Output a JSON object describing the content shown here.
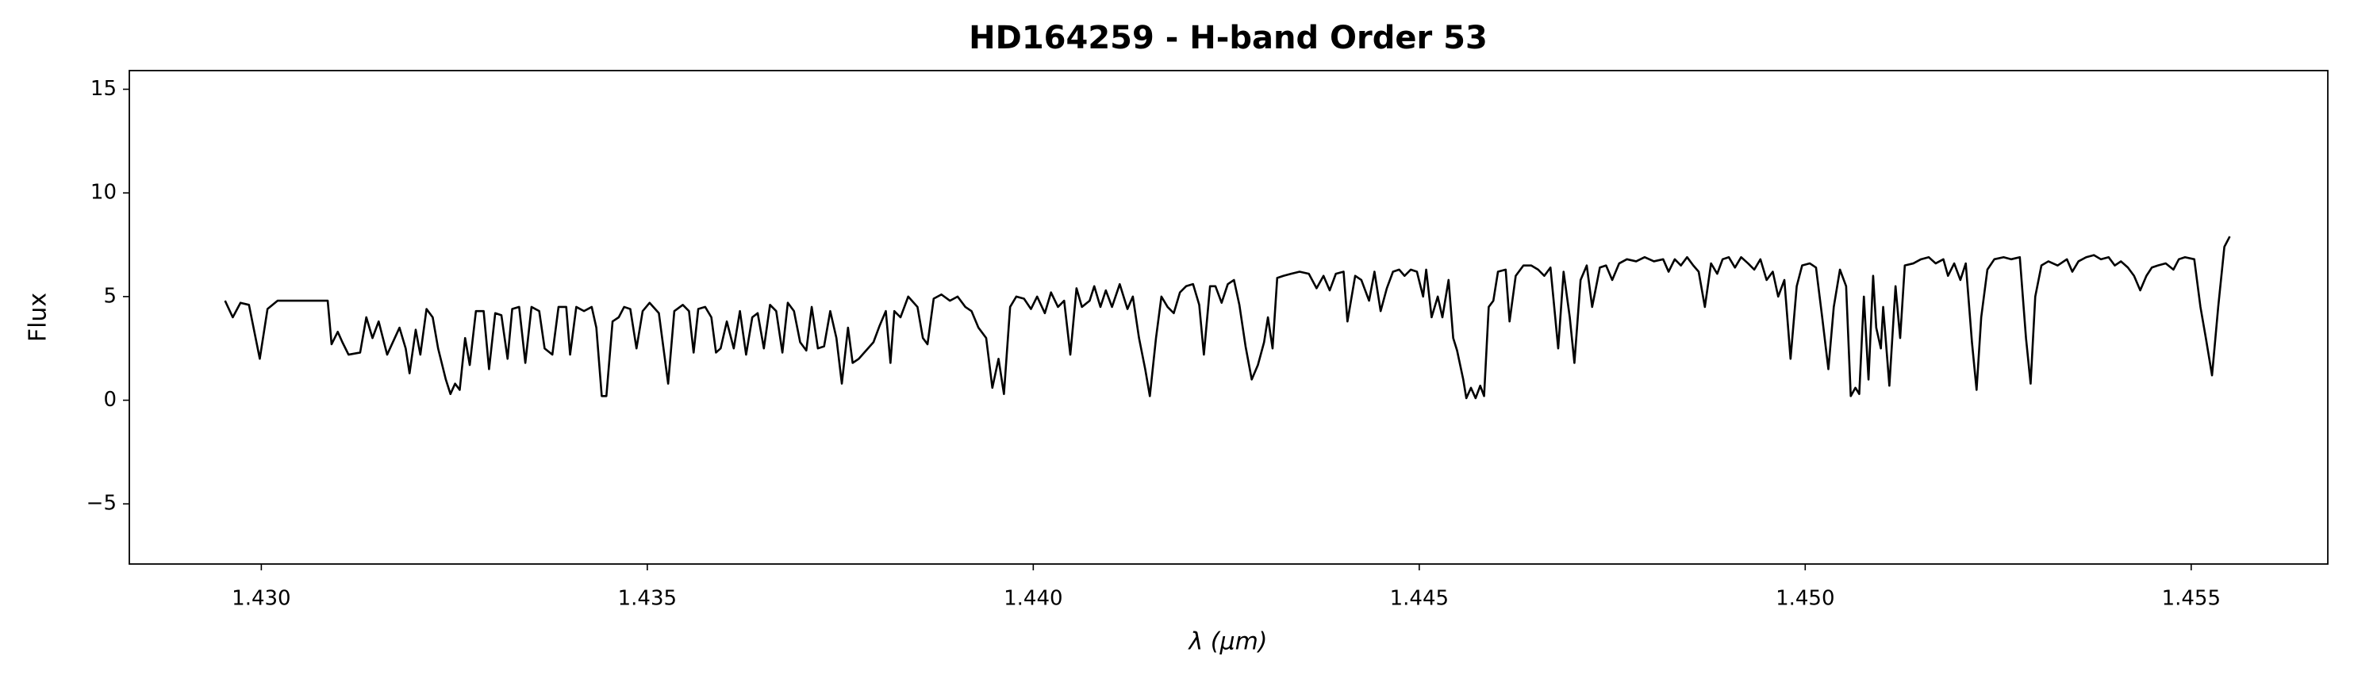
{
  "chart_data": {
    "type": "line",
    "title": "HD164259 - H-band Order 53",
    "x_label": "λ (μm)",
    "y_label": "Flux",
    "color": "#000000",
    "xlim": [
      1.42829,
      1.45677
    ],
    "ylim": [
      -7.9,
      15.9
    ],
    "xticks": [
      {
        "value": 1.43,
        "label": "1.430"
      },
      {
        "value": 1.435,
        "label": "1.435"
      },
      {
        "value": 1.44,
        "label": "1.440"
      },
      {
        "value": 1.445,
        "label": "1.445"
      },
      {
        "value": 1.45,
        "label": "1.450"
      },
      {
        "value": 1.455,
        "label": "1.455"
      }
    ],
    "yticks": [
      {
        "value": -5,
        "label": "−5"
      },
      0,
      5,
      10,
      15
    ],
    "grid": false,
    "x": [
      1.42953,
      1.42963,
      1.42973,
      1.42984,
      1.42998,
      1.43008,
      1.43021,
      1.43086,
      1.43091,
      1.43099,
      1.43105,
      1.43113,
      1.43128,
      1.43136,
      1.43144,
      1.43152,
      1.43163,
      1.43179,
      1.43187,
      1.43192,
      1.432,
      1.43206,
      1.43214,
      1.43222,
      1.43229,
      1.43239,
      1.43245,
      1.43251,
      1.43257,
      1.43264,
      1.4327,
      1.43278,
      1.43288,
      1.43295,
      1.43303,
      1.43311,
      1.43319,
      1.43325,
      1.43334,
      1.43342,
      1.4335,
      1.4336,
      1.43367,
      1.43377,
      1.43385,
      1.43395,
      1.434,
      1.43408,
      1.43418,
      1.43428,
      1.43434,
      1.43441,
      1.43447,
      1.43455,
      1.43463,
      1.4347,
      1.43478,
      1.43486,
      1.43494,
      1.43503,
      1.43515,
      1.43527,
      1.43535,
      1.43546,
      1.43554,
      1.4356,
      1.43566,
      1.43575,
      1.43583,
      1.43589,
      1.43595,
      1.43603,
      1.43612,
      1.4362,
      1.43628,
      1.43636,
      1.43643,
      1.43651,
      1.43659,
      1.43667,
      1.43675,
      1.43682,
      1.4369,
      1.43698,
      1.43706,
      1.43713,
      1.43721,
      1.43729,
      1.43737,
      1.43745,
      1.43752,
      1.4376,
      1.43766,
      1.43774,
      1.43793,
      1.43801,
      1.43809,
      1.43815,
      1.4382,
      1.43828,
      1.43838,
      1.4385,
      1.43857,
      1.43863,
      1.43871,
      1.43881,
      1.43892,
      1.43902,
      1.43912,
      1.4392,
      1.43929,
      1.43939,
      1.43947,
      1.43955,
      1.43962,
      1.4397,
      1.43978,
      1.43988,
      1.43997,
      1.44005,
      1.44015,
      1.44023,
      1.44032,
      1.4404,
      1.44048,
      1.44056,
      1.44063,
      1.44073,
      1.44079,
      1.44087,
      1.44094,
      1.44102,
      1.44112,
      1.44122,
      1.44129,
      1.44137,
      1.44145,
      1.44151,
      1.44159,
      1.44166,
      1.44174,
      1.44182,
      1.4419,
      1.44198,
      1.44207,
      1.44215,
      1.44221,
      1.44229,
      1.44236,
      1.44244,
      1.44252,
      1.4426,
      1.44267,
      1.44275,
      1.44283,
      1.44291,
      1.44299,
      1.44304,
      1.4431,
      1.44316,
      1.44324,
      1.44334,
      1.44345,
      1.44357,
      1.44367,
      1.44376,
      1.44384,
      1.44392,
      1.44402,
      1.44407,
      1.44417,
      1.44425,
      1.44435,
      1.44442,
      1.4445,
      1.44458,
      1.44466,
      1.44474,
      1.44481,
      1.44489,
      1.44497,
      1.44505,
      1.44509,
      1.44516,
      1.44524,
      1.4453,
      1.44538,
      1.44544,
      1.44549,
      1.44557,
      1.44561,
      1.44567,
      1.44573,
      1.44579,
      1.44584,
      1.4459,
      1.44596,
      1.44602,
      1.44612,
      1.44617,
      1.44625,
      1.44635,
      1.44645,
      1.44654,
      1.44662,
      1.4467,
      1.4468,
      1.44687,
      1.44695,
      1.44701,
      1.44709,
      1.44717,
      1.44724,
      1.44734,
      1.44742,
      1.4475,
      1.44759,
      1.44769,
      1.44781,
      1.44792,
      1.44804,
      1.44816,
      1.44823,
      1.44831,
      1.44839,
      1.44847,
      1.44855,
      1.44862,
      1.4487,
      1.44878,
      1.44886,
      1.44893,
      1.44901,
      1.44909,
      1.44917,
      1.44926,
      1.44934,
      1.44942,
      1.4495,
      1.44958,
      1.44965,
      1.44973,
      1.44981,
      1.44989,
      1.44996,
      1.45006,
      1.45014,
      1.45022,
      1.4503,
      1.45037,
      1.45045,
      1.45053,
      1.45059,
      1.45065,
      1.4507,
      1.45076,
      1.45082,
      1.45088,
      1.45092,
      1.45098,
      1.45101,
      1.45109,
      1.45117,
      1.45123,
      1.45129,
      1.4514,
      1.4515,
      1.4516,
      1.45169,
      1.45179,
      1.45185,
      1.45193,
      1.45201,
      1.45208,
      1.45216,
      1.45222,
      1.45228,
      1.45236,
      1.45245,
      1.45257,
      1.45267,
      1.45278,
      1.45286,
      1.45292,
      1.45298,
      1.45306,
      1.45315,
      1.45327,
      1.45339,
      1.45346,
      1.45354,
      1.45364,
      1.45374,
      1.45383,
      1.45393,
      1.45401,
      1.45409,
      1.45418,
      1.45426,
      1.45434,
      1.45442,
      1.45449,
      1.45457,
      1.45467,
      1.45477,
      1.45484,
      1.45492,
      1.45504,
      1.45512,
      1.45519,
      1.45527,
      1.45535,
      1.45543,
      1.4555
    ],
    "values": [
      4.8,
      4.0,
      4.7,
      4.6,
      2.0,
      4.4,
      4.8,
      4.8,
      2.7,
      3.3,
      2.8,
      2.2,
      2.3,
      4.0,
      3.0,
      3.8,
      2.2,
      3.5,
      2.5,
      1.3,
      3.4,
      2.2,
      4.4,
      4.0,
      2.5,
      1.0,
      0.3,
      0.8,
      0.5,
      3.0,
      1.7,
      4.3,
      4.3,
      1.5,
      4.2,
      4.1,
      2.0,
      4.4,
      4.5,
      1.8,
      4.5,
      4.3,
      2.5,
      2.2,
      4.5,
      4.5,
      2.2,
      4.5,
      4.3,
      4.5,
      3.5,
      0.2,
      0.2,
      3.8,
      4.0,
      4.5,
      4.4,
      2.5,
      4.3,
      4.7,
      4.2,
      0.8,
      4.3,
      4.6,
      4.3,
      2.3,
      4.4,
      4.5,
      4.0,
      2.3,
      2.5,
      3.8,
      2.5,
      4.3,
      2.2,
      4.0,
      4.2,
      2.5,
      4.6,
      4.3,
      2.3,
      4.7,
      4.3,
      2.8,
      2.4,
      4.5,
      2.5,
      2.6,
      4.3,
      3.0,
      0.8,
      3.5,
      1.8,
      2.0,
      2.8,
      3.6,
      4.3,
      1.8,
      4.3,
      4.0,
      5.0,
      4.5,
      3.0,
      2.7,
      4.9,
      5.1,
      4.8,
      5.0,
      4.5,
      4.3,
      3.5,
      3.0,
      0.6,
      2.0,
      0.3,
      4.5,
      5.0,
      4.9,
      4.4,
      5.0,
      4.2,
      5.2,
      4.5,
      4.8,
      2.2,
      5.4,
      4.5,
      4.8,
      5.5,
      4.5,
      5.3,
      4.5,
      5.6,
      4.4,
      5.0,
      3.0,
      1.5,
      0.2,
      3.0,
      5.0,
      4.5,
      4.2,
      5.2,
      5.5,
      5.6,
      4.6,
      2.2,
      5.5,
      5.5,
      4.7,
      5.6,
      5.8,
      4.6,
      2.6,
      1.0,
      1.7,
      2.8,
      4.0,
      2.5,
      5.9,
      6.0,
      6.1,
      6.2,
      6.1,
      5.4,
      6.0,
      5.3,
      6.1,
      6.2,
      3.8,
      6.0,
      5.8,
      4.8,
      6.2,
      4.3,
      5.4,
      6.2,
      6.3,
      6.0,
      6.3,
      6.2,
      5.0,
      6.3,
      4.0,
      5.0,
      4.0,
      5.8,
      3.0,
      2.4,
      1.0,
      0.1,
      0.6,
      0.1,
      0.7,
      0.2,
      4.5,
      4.8,
      6.2,
      6.3,
      3.8,
      6.0,
      6.5,
      6.5,
      6.3,
      6.0,
      6.4,
      2.5,
      6.2,
      4.0,
      1.8,
      5.8,
      6.5,
      4.5,
      6.4,
      6.5,
      5.8,
      6.6,
      6.8,
      6.7,
      6.9,
      6.7,
      6.8,
      6.2,
      6.8,
      6.5,
      6.9,
      6.5,
      6.2,
      4.5,
      6.6,
      6.1,
      6.8,
      6.9,
      6.4,
      6.9,
      6.6,
      6.3,
      6.8,
      5.8,
      6.2,
      5.0,
      5.8,
      2.0,
      5.5,
      6.5,
      6.6,
      6.4,
      4.0,
      1.5,
      4.5,
      6.3,
      5.5,
      0.2,
      0.6,
      0.3,
      5.0,
      1.0,
      6.0,
      3.5,
      2.5,
      4.5,
      0.7,
      5.5,
      3.0,
      6.5,
      6.6,
      6.8,
      6.9,
      6.6,
      6.8,
      6.0,
      6.6,
      5.8,
      6.6,
      2.8,
      0.5,
      4.0,
      6.3,
      6.8,
      6.9,
      6.8,
      6.9,
      3.0,
      0.8,
      5.0,
      6.5,
      6.7,
      6.5,
      6.8,
      6.2,
      6.7,
      6.9,
      7.0,
      6.8,
      6.9,
      6.5,
      6.7,
      6.4,
      6.0,
      5.3,
      6.0,
      6.4,
      6.5,
      6.6,
      6.3,
      6.8,
      6.9,
      6.8,
      4.5,
      3.0,
      1.2,
      4.5,
      7.4,
      7.9
    ]
  }
}
